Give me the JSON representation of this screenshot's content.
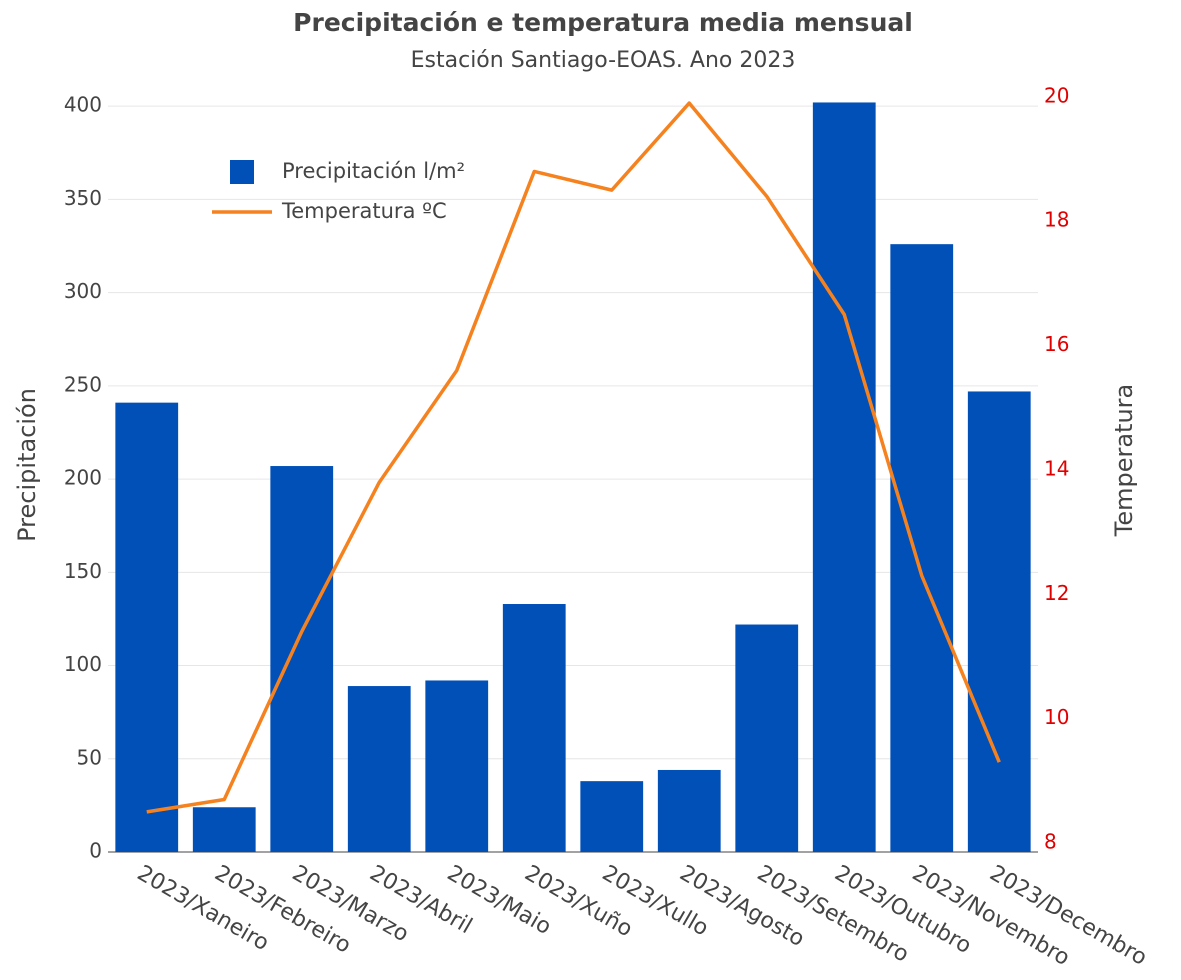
{
  "chart_data": {
    "type": "bar",
    "title": "Precipitación e temperatura media mensual",
    "subtitle": "Estación Santiago-EOAS. Ano 2023",
    "y_label": "Precipitación",
    "y2_label": "Temperatura",
    "categories": [
      "2023/Xaneiro",
      "2023/Febreiro",
      "2023/Marzo",
      "2023/Abril",
      "2023/Maio",
      "2023/Xuño",
      "2023/Xullo",
      "2023/Agosto",
      "2023/Setembro",
      "2023/Outubro",
      "2023/Novembro",
      "2023/Decembro"
    ],
    "series": [
      {
        "name": "Precipitación l/m²",
        "type": "bar",
        "color": "#0050b8",
        "values": [
          241,
          24,
          207,
          89,
          92,
          133,
          38,
          44,
          122,
          402,
          326,
          247
        ]
      },
      {
        "name": "Temperatura ºC",
        "type": "line",
        "axis": "y2",
        "color": "#f5821f",
        "values": [
          8.5,
          8.7,
          11.4,
          13.8,
          15.6,
          18.8,
          18.5,
          19.9,
          18.4,
          16.5,
          12.3,
          9.3
        ]
      }
    ],
    "ylim": [
      0,
      406
    ],
    "yticks": [
      0,
      50,
      100,
      150,
      200,
      250,
      300,
      350,
      400
    ],
    "y2lim": [
      7.855,
      20.03
    ],
    "y2ticks": [
      8,
      10,
      12,
      14,
      16,
      18,
      20
    ],
    "y2tick_color": "#e00000",
    "grid": true,
    "legend": "top-left"
  }
}
